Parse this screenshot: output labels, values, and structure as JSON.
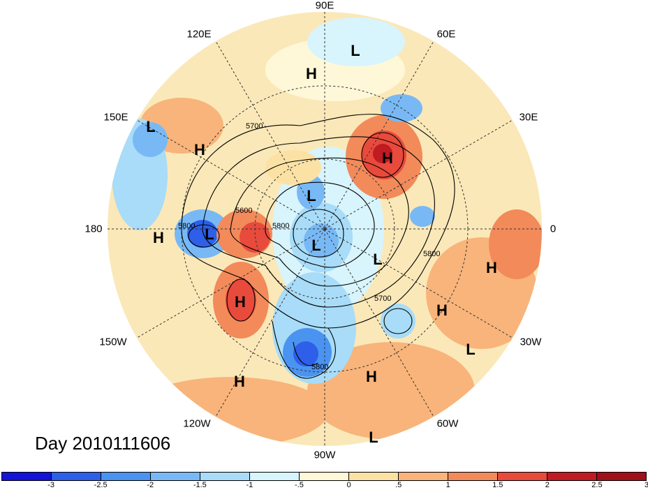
{
  "title": "Day 2010111606",
  "lon_labels": [
    "90E",
    "60E",
    "30E",
    "0",
    "30W",
    "60W",
    "90W",
    "120W",
    "150W",
    "180",
    "150E",
    "120E"
  ],
  "contour_labels": [
    "5700",
    "5800",
    "5600",
    "5800",
    "5700",
    "5800",
    "5800"
  ],
  "colorbar": {
    "colors": [
      "#1414d8",
      "#2e5fe8",
      "#4a93f0",
      "#78b9f5",
      "#a8dcf8",
      "#d8f4fc",
      "#fff8d8",
      "#fbe2a4",
      "#f8b47a",
      "#f28a5a",
      "#e84a3c",
      "#c01a22",
      "#a01018"
    ],
    "ticks": [
      "-3",
      "-2.5",
      "-2",
      "-1.5",
      "-1",
      "-.5",
      "0",
      ".5",
      "1",
      "1.5",
      "2",
      "2.5",
      "3"
    ]
  },
  "pressure_centers": [
    {
      "label": "L"
    },
    {
      "label": "H"
    },
    {
      "label": "L"
    },
    {
      "label": "H"
    },
    {
      "label": "H"
    },
    {
      "label": "L"
    },
    {
      "label": "H"
    },
    {
      "label": "L"
    },
    {
      "label": "L"
    },
    {
      "label": "L"
    },
    {
      "label": "H"
    },
    {
      "label": "H"
    },
    {
      "label": "H"
    },
    {
      "label": "L"
    },
    {
      "label": "H"
    },
    {
      "label": "H"
    },
    {
      "label": "L"
    }
  ]
}
